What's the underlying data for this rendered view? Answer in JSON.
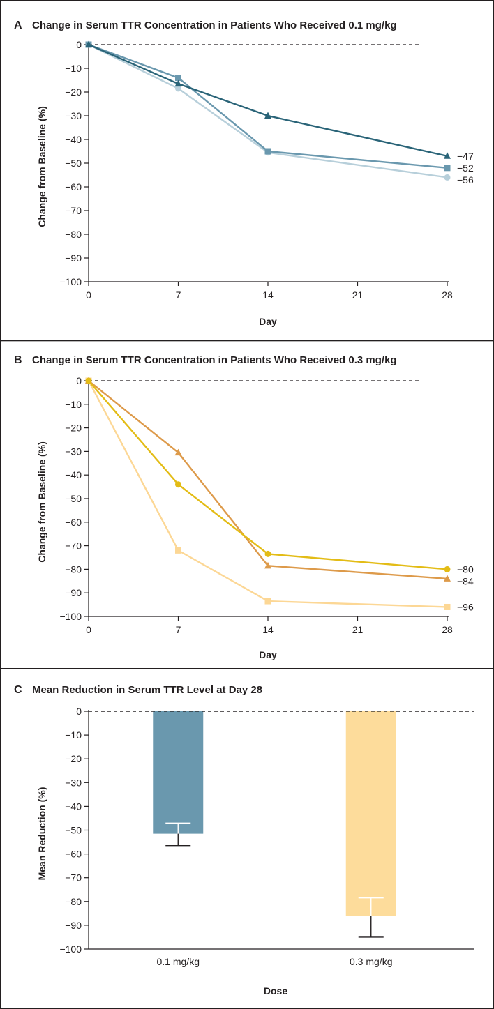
{
  "figure": {
    "panels": {
      "A": {
        "letter": "A",
        "title": "Change in Serum TTR Concentration in Patients Who Received 0.1 mg/kg"
      },
      "B": {
        "letter": "B",
        "title": "Change in Serum TTR Concentration in Patients Who Received 0.3 mg/kg"
      },
      "C": {
        "letter": "C",
        "title": "Mean Reduction in Serum TTR Level at Day 28"
      }
    }
  },
  "chart_data": [
    {
      "panel": "A",
      "type": "line",
      "title": "Change in Serum TTR Concentration in Patients Who Received 0.1 mg/kg",
      "xlabel": "Day",
      "ylabel": "Change from Baseline (%)",
      "xlim": [
        0,
        28
      ],
      "ylim": [
        -100,
        0
      ],
      "xticks": [
        "0",
        "7",
        "14",
        "21",
        "28"
      ],
      "yticks": [
        "0",
        "−10",
        "−20",
        "−30",
        "−40",
        "−50",
        "−60",
        "−70",
        "−80",
        "−90",
        "−100"
      ],
      "reference_line": {
        "y": 0,
        "style": "dashed"
      },
      "grid": false,
      "series": [
        {
          "marker": "triangle",
          "color": "#2a6478",
          "x": [
            0,
            7,
            14,
            28
          ],
          "values": [
            0,
            -16.5,
            -30,
            -47
          ],
          "end_label": "−47"
        },
        {
          "marker": "square",
          "color": "#6a98ae",
          "x": [
            0,
            7,
            14,
            28
          ],
          "values": [
            0,
            -14,
            -45,
            -52
          ],
          "end_label": "−52"
        },
        {
          "marker": "circle",
          "color": "#b7cfda",
          "x": [
            0,
            7,
            14,
            28
          ],
          "values": [
            0,
            -18.5,
            -45.5,
            -56
          ],
          "end_label": "−56"
        }
      ]
    },
    {
      "panel": "B",
      "type": "line",
      "title": "Change in Serum TTR Concentration in Patients Who Received 0.3 mg/kg",
      "xlabel": "Day",
      "ylabel": "Change from Baseline (%)",
      "xlim": [
        0,
        28
      ],
      "ylim": [
        -100,
        0
      ],
      "xticks": [
        "0",
        "7",
        "14",
        "21",
        "28"
      ],
      "yticks": [
        "0",
        "−10",
        "−20",
        "−30",
        "−40",
        "−50",
        "−60",
        "−70",
        "−80",
        "−90",
        "−100"
      ],
      "reference_line": {
        "y": 0,
        "style": "dashed"
      },
      "grid": false,
      "series": [
        {
          "marker": "circle",
          "color": "#e3bc16",
          "x": [
            0,
            7,
            14,
            28
          ],
          "values": [
            0,
            -44,
            -73.5,
            -80
          ],
          "end_label": "−80"
        },
        {
          "marker": "triangle",
          "color": "#dd9a4a",
          "x": [
            0,
            7,
            14,
            28
          ],
          "values": [
            0,
            -30.5,
            -78.5,
            -84
          ],
          "end_label": "−84"
        },
        {
          "marker": "square",
          "color": "#fcd795",
          "x": [
            0,
            7,
            14,
            28
          ],
          "values": [
            0,
            -72,
            -93.5,
            -96
          ],
          "end_label": "−96"
        }
      ]
    },
    {
      "panel": "C",
      "type": "bar",
      "title": "Mean Reduction in Serum TTR Level at Day 28",
      "xlabel": "Dose",
      "ylabel": "Mean Reduction (%)",
      "ylim": [
        -100,
        0
      ],
      "yticks": [
        "0",
        "−10",
        "−20",
        "−30",
        "−40",
        "−50",
        "−60",
        "−70",
        "−80",
        "−90",
        "−100"
      ],
      "reference_line": {
        "y": 0,
        "style": "dashed"
      },
      "grid": false,
      "categories": [
        "0.1 mg/kg",
        "0.3 mg/kg"
      ],
      "values": [
        -51.5,
        -86
      ],
      "error_bars": [
        {
          "low": -56.5,
          "high": -47
        },
        {
          "low": -95,
          "high": -78.5
        }
      ],
      "colors": [
        "#6a98ae",
        "#fddc9b"
      ]
    }
  ]
}
